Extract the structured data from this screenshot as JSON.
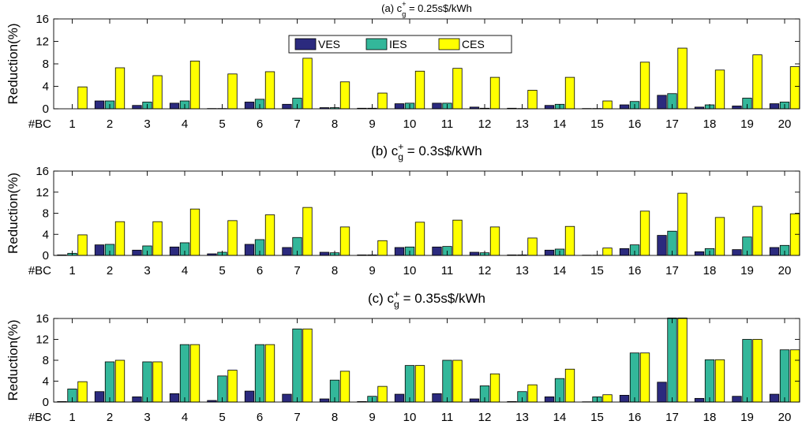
{
  "colors": {
    "VES": "#2b2a7e",
    "IES": "#33b79a",
    "CES": "#ffff00"
  },
  "chart_data": [
    {
      "type": "bar",
      "title_prefix": "(a) c",
      "title_sup": "+",
      "title_sub": "g",
      "title_suffix": " = 0.25s$/kWh",
      "ylabel": "Reduction(%)",
      "xlabel": "#BC",
      "ylim": [
        0,
        16
      ],
      "yticks": [
        "0",
        "4",
        "8",
        "12",
        "16"
      ],
      "categories": [
        "1",
        "2",
        "3",
        "4",
        "5",
        "6",
        "7",
        "8",
        "9",
        "10",
        "11",
        "12",
        "13",
        "14",
        "15",
        "16",
        "17",
        "18",
        "19",
        "20"
      ],
      "legend": "top-center",
      "series": [
        {
          "name": "VES",
          "values": [
            0,
            1.4,
            0.6,
            1.0,
            0.05,
            1.2,
            0.8,
            0.2,
            0.1,
            0.9,
            1.0,
            0.3,
            0.1,
            0.6,
            0.05,
            0.7,
            2.4,
            0.3,
            0.5,
            0.9
          ]
        },
        {
          "name": "IES",
          "values": [
            0,
            1.4,
            1.2,
            1.4,
            0.05,
            1.7,
            1.9,
            0.2,
            0.1,
            1.0,
            1.0,
            0.1,
            0.05,
            0.8,
            0.05,
            1.3,
            2.7,
            0.7,
            1.9,
            1.2
          ]
        },
        {
          "name": "CES",
          "values": [
            3.9,
            7.3,
            5.9,
            8.5,
            6.2,
            6.6,
            9.0,
            4.8,
            2.8,
            6.7,
            7.2,
            5.6,
            3.3,
            5.6,
            1.4,
            8.3,
            10.8,
            6.9,
            9.6,
            7.5
          ]
        }
      ]
    },
    {
      "type": "bar",
      "title_prefix": "(b) c",
      "title_sup": "+",
      "title_sub": "g",
      "title_suffix": " = 0.3s$/kWh",
      "ylabel": "Reduction(%)",
      "xlabel": "#BC",
      "ylim": [
        0,
        16
      ],
      "yticks": [
        "0",
        "4",
        "8",
        "12",
        "16"
      ],
      "categories": [
        "1",
        "2",
        "3",
        "4",
        "5",
        "6",
        "7",
        "8",
        "9",
        "10",
        "11",
        "12",
        "13",
        "14",
        "15",
        "16",
        "17",
        "18",
        "19",
        "20"
      ],
      "series": [
        {
          "name": "VES",
          "values": [
            0.1,
            2.0,
            1.0,
            1.6,
            0.3,
            2.1,
            1.5,
            0.6,
            0.1,
            1.5,
            1.6,
            0.6,
            0.1,
            1.0,
            0.05,
            1.3,
            3.8,
            0.7,
            1.1,
            1.5
          ]
        },
        {
          "name": "IES",
          "values": [
            0.4,
            2.1,
            1.8,
            2.4,
            0.6,
            3.0,
            3.4,
            0.5,
            0.1,
            1.6,
            1.7,
            0.5,
            0.1,
            1.2,
            0.05,
            2.0,
            4.6,
            1.3,
            3.5,
            1.9
          ]
        },
        {
          "name": "CES",
          "values": [
            3.9,
            6.4,
            6.4,
            8.8,
            6.6,
            7.7,
            9.1,
            5.4,
            2.8,
            6.3,
            6.7,
            5.4,
            3.3,
            5.5,
            1.4,
            8.4,
            11.8,
            7.2,
            9.3,
            7.9
          ]
        }
      ]
    },
    {
      "type": "bar",
      "title_prefix": "(c) c",
      "title_sup": "+",
      "title_sub": "g",
      "title_suffix": " = 0.35s$/kWh",
      "ylabel": "Reduction(%)",
      "xlabel": "#BC",
      "ylim": [
        0,
        16
      ],
      "yticks": [
        "0",
        "4",
        "8",
        "12",
        "16"
      ],
      "categories": [
        "1",
        "2",
        "3",
        "4",
        "5",
        "6",
        "7",
        "8",
        "9",
        "10",
        "11",
        "12",
        "13",
        "14",
        "15",
        "16",
        "17",
        "18",
        "19",
        "20"
      ],
      "series": [
        {
          "name": "VES",
          "values": [
            0.1,
            2.0,
            1.0,
            1.6,
            0.3,
            2.1,
            1.5,
            0.6,
            0.1,
            1.5,
            1.6,
            0.6,
            0.1,
            1.0,
            0.05,
            1.3,
            3.8,
            0.7,
            1.1,
            1.5
          ]
        },
        {
          "name": "IES",
          "values": [
            2.5,
            7.7,
            7.7,
            11.0,
            5.0,
            11.0,
            14.0,
            4.2,
            1.1,
            7.0,
            8.0,
            3.1,
            2.0,
            4.5,
            1.0,
            9.4,
            16.1,
            8.1,
            12.0,
            10.0
          ]
        },
        {
          "name": "CES",
          "values": [
            3.9,
            8.0,
            7.7,
            11.0,
            6.1,
            11.0,
            14.0,
            5.9,
            3.0,
            7.0,
            8.0,
            5.4,
            3.3,
            6.3,
            1.4,
            9.4,
            16.1,
            8.1,
            12.0,
            10.0
          ]
        }
      ]
    }
  ]
}
